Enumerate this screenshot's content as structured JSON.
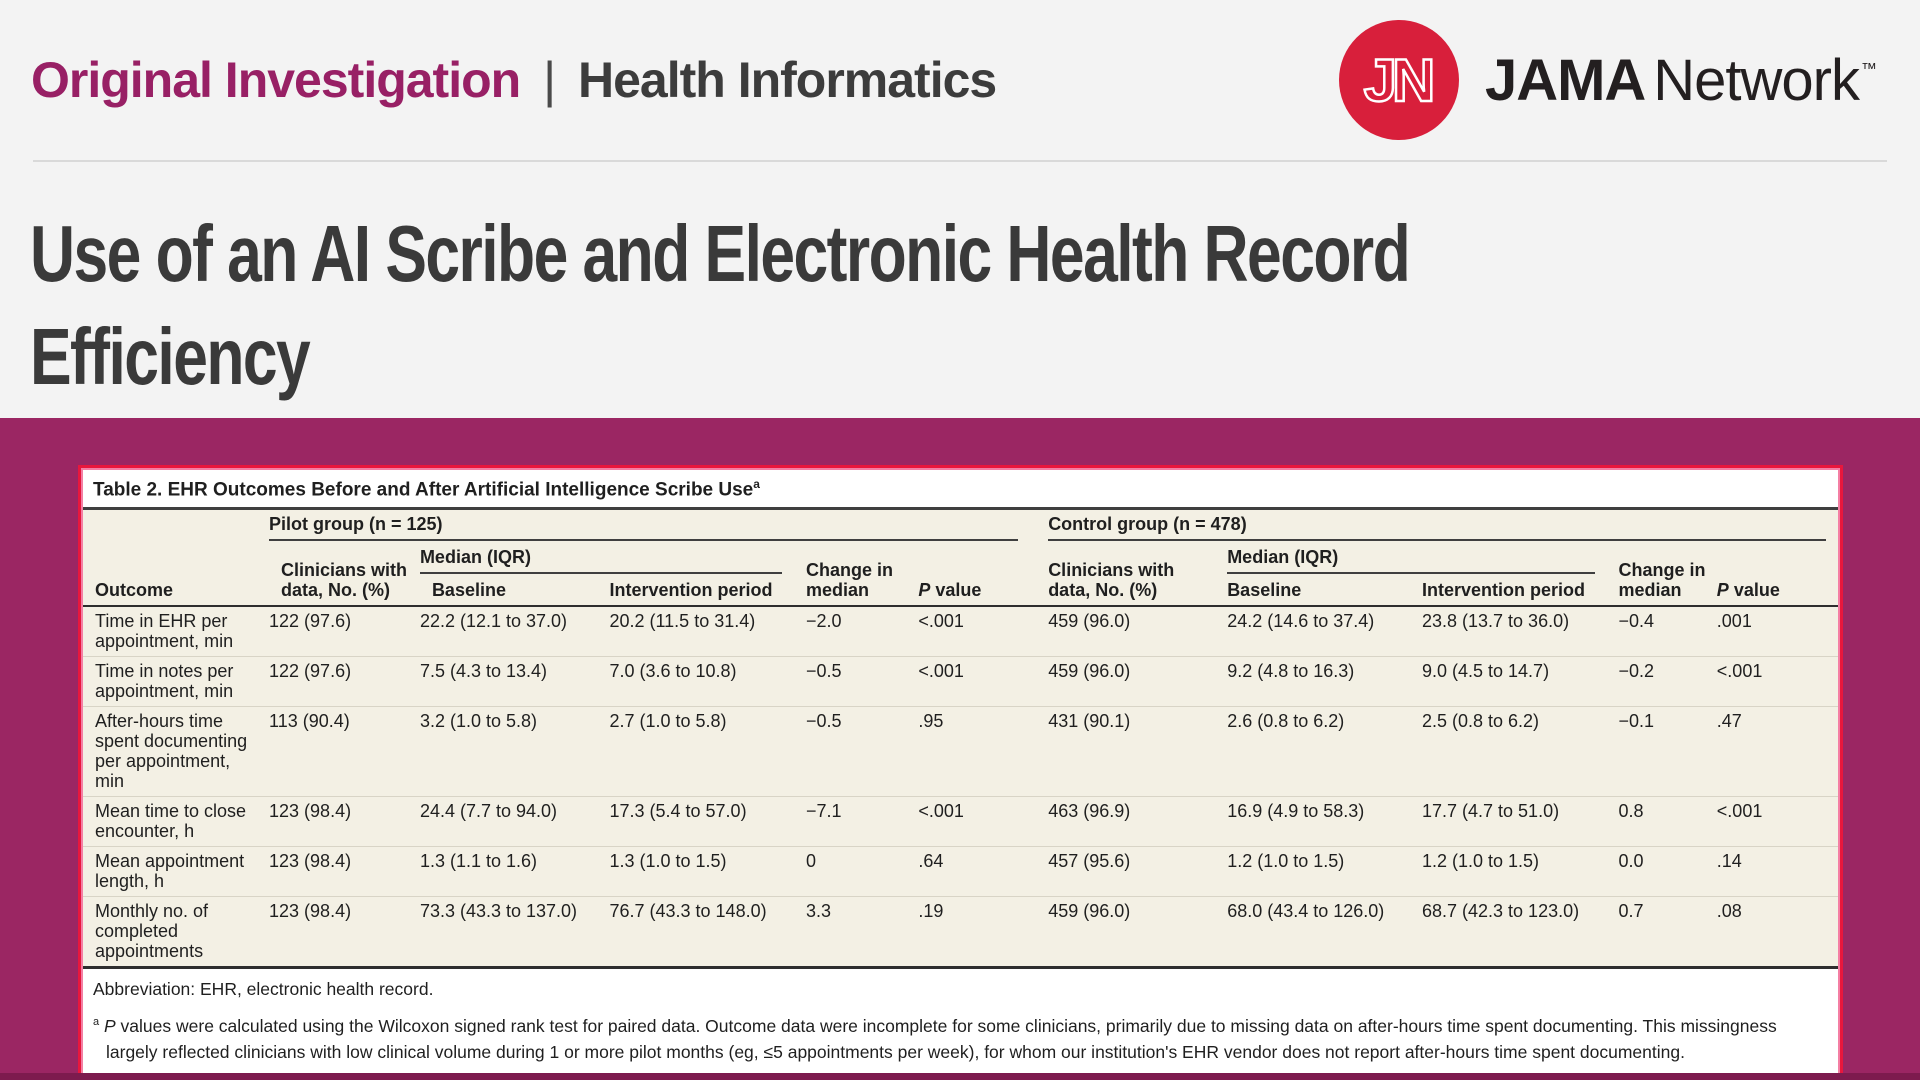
{
  "header": {
    "article_type": "Original Investigation",
    "separator": "|",
    "category": "Health Informatics",
    "logo": {
      "monogram": "JN",
      "brand_bold": "JAMA",
      "brand_regular": "Network",
      "trademark": "™"
    }
  },
  "article_title": {
    "line1": "Use of an AI Scribe and Electronic Health Record",
    "line2": "Efficiency"
  },
  "table": {
    "title": "Table 2. EHR Outcomes Before and After Artificial Intelligence Scribe Use",
    "title_superscript": "a",
    "col_outcome": "Outcome",
    "median_iqr": "Median (IQR)",
    "baseline": "Baseline",
    "intervention": "Intervention period",
    "change": "Change in median",
    "p_italic": "P",
    "p_rest": " value",
    "pilot": {
      "label": "Pilot group (n = 125)",
      "clinicians": "Clinicians with data, No. (%)"
    },
    "control": {
      "label": "Control group (n = 478)",
      "clinicians": "Clinicians with data, No. (%)"
    },
    "rows": [
      {
        "outcome": "Time in EHR per appointment, min",
        "pilot": [
          "122 (97.6)",
          "22.2 (12.1 to 37.0)",
          "20.2 (11.5 to 31.4)",
          "−2.0",
          "<.001"
        ],
        "control": [
          "459 (96.0)",
          "24.2 (14.6 to 37.4)",
          "23.8 (13.7 to 36.0)",
          "−0.4",
          ".001"
        ]
      },
      {
        "outcome": "Time in notes per appointment, min",
        "pilot": [
          "122 (97.6)",
          "7.5 (4.3 to 13.4)",
          "7.0 (3.6 to 10.8)",
          "−0.5",
          "<.001"
        ],
        "control": [
          "459 (96.0)",
          "9.2 (4.8 to 16.3)",
          "9.0 (4.5 to 14.7)",
          "−0.2",
          "<.001"
        ]
      },
      {
        "outcome": "After-hours time spent documenting per appointment, min",
        "pilot": [
          "113 (90.4)",
          "3.2 (1.0 to 5.8)",
          "2.7 (1.0 to 5.8)",
          "−0.5",
          ".95"
        ],
        "control": [
          "431 (90.1)",
          "2.6 (0.8 to 6.2)",
          "2.5 (0.8 to 6.2)",
          "−0.1",
          ".47"
        ]
      },
      {
        "outcome": "Mean time to close encounter, h",
        "pilot": [
          "123 (98.4)",
          "24.4 (7.7 to 94.0)",
          "17.3 (5.4 to 57.0)",
          "−7.1",
          "<.001"
        ],
        "control": [
          "463 (96.9)",
          "16.9 (4.9 to 58.3)",
          "17.7 (4.7 to 51.0)",
          "0.8",
          "<.001"
        ]
      },
      {
        "outcome": "Mean appointment length, h",
        "pilot": [
          "123 (98.4)",
          "1.3 (1.1 to 1.6)",
          "1.3 (1.0 to 1.5)",
          "0",
          ".64"
        ],
        "control": [
          "457 (95.6)",
          "1.2 (1.0 to 1.5)",
          "1.2 (1.0 to 1.5)",
          "0.0",
          ".14"
        ]
      },
      {
        "outcome": "Monthly no. of completed appointments",
        "pilot": [
          "123 (98.4)",
          "73.3 (43.3 to 137.0)",
          "76.7 (43.3 to 148.0)",
          "3.3",
          ".19"
        ],
        "control": [
          "459 (96.0)",
          "68.0 (43.4 to 126.0)",
          "68.7 (42.3 to 123.0)",
          "0.7",
          ".08"
        ]
      }
    ],
    "footnotes": {
      "abbreviation": "Abbreviation: EHR, electronic health record.",
      "marker": "a",
      "p_italic": "P",
      "text": " values were calculated using the Wilcoxon signed rank test for paired data. Outcome data were incomplete for some clinicians, primarily due to missing data on after-hours time spent documenting. This missingness largely reflected clinicians with low clinical volume during 1 or more pilot months (eg, ≤5 appointments per week), for whom our institution's EHR vendor does not report after-hours time spent documenting."
    }
  },
  "colors": {
    "brand_magenta": "#982065",
    "band_magenta": "#9b2663",
    "jama_red": "#d81f3b",
    "table_cream": "#f3f0e4",
    "highlight_red": "#e8173d",
    "highlight_pink": "#f47fa4"
  }
}
